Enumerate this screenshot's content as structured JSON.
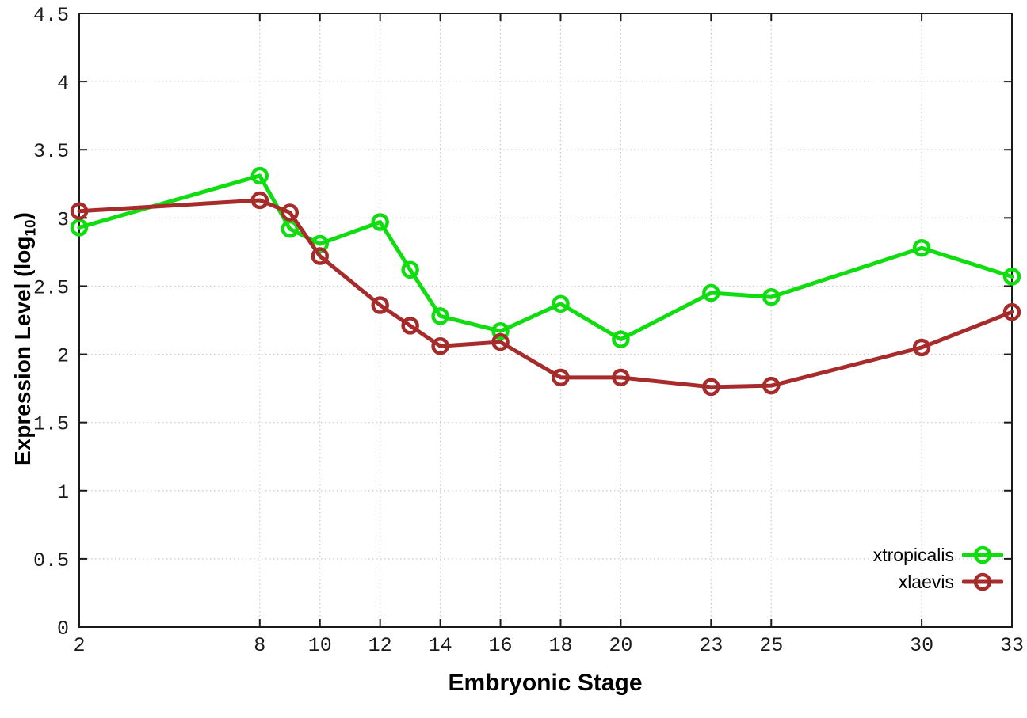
{
  "chart_data": {
    "type": "line",
    "title": "",
    "xlabel": "Embryonic Stage",
    "ylabel": "Expression Level (log10)",
    "ylabel_prefix": "Expression Level (log",
    "ylabel_sub": "10",
    "ylabel_suffix": ")",
    "x": [
      2,
      8,
      9,
      10,
      12,
      13,
      14,
      16,
      18,
      20,
      23,
      25,
      30,
      33
    ],
    "series": [
      {
        "name": "xtropicalis",
        "color": "#0fdd0f",
        "values": [
          2.93,
          3.31,
          2.92,
          2.81,
          2.97,
          2.62,
          2.28,
          2.17,
          2.37,
          2.11,
          2.45,
          2.42,
          2.78,
          2.57
        ]
      },
      {
        "name": "xlaevis",
        "color": "#a62c2c",
        "values": [
          3.05,
          3.13,
          3.04,
          2.72,
          2.36,
          2.21,
          2.06,
          2.09,
          1.83,
          1.83,
          1.76,
          1.77,
          2.05,
          2.31
        ]
      }
    ],
    "xlim": [
      2,
      33
    ],
    "ylim": [
      0,
      4.5
    ],
    "x_ticks": [
      2,
      8,
      10,
      12,
      14,
      16,
      18,
      20,
      23,
      25,
      30,
      33
    ],
    "y_ticks": [
      0,
      0.5,
      1,
      1.5,
      2,
      2.5,
      3,
      3.5,
      4,
      4.5
    ],
    "grid": true,
    "grid_style": "dotted",
    "grid_color": "#c9c9c9",
    "axis_color": "#1a1a1a",
    "marker": "open-circle",
    "legend_position": "bottom-right",
    "legend_entries": [
      "xtropicalis",
      "xlaevis"
    ]
  }
}
